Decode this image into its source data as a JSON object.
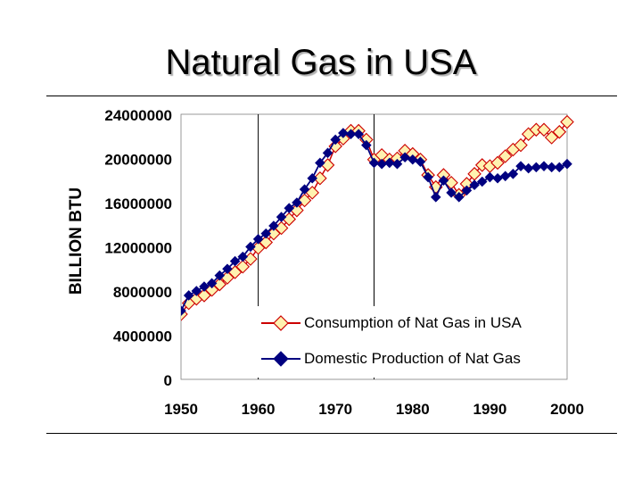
{
  "slide": {
    "title": "Natural Gas in USA"
  },
  "colors": {
    "consumption_fill": "#fff2b0",
    "consumption_line": "#cc0000",
    "production": "#000080",
    "grid": "#000000",
    "plot_bg": "#ffffff"
  },
  "chart_data": {
    "type": "line",
    "title": "",
    "xlabel": "",
    "ylabel": "BILLION BTU",
    "xlim": [
      1950,
      2000
    ],
    "ylim": [
      0,
      24000000
    ],
    "x_ticks": [
      "1950",
      "1960",
      "1970",
      "1980",
      "1990",
      "2000"
    ],
    "y_ticks": [
      "0",
      "4000000",
      "8000000",
      "12000000",
      "16000000",
      "20000000",
      "24000000"
    ],
    "grid": "vertical lines at 1960 and 1975",
    "legend_position": "bottom-right",
    "series": [
      {
        "name": "Consumption of Nat Gas in USA",
        "marker": "diamond",
        "x": [
          1949,
          1950,
          1951,
          1952,
          1953,
          1954,
          1955,
          1956,
          1957,
          1958,
          1959,
          1960,
          1961,
          1962,
          1963,
          1964,
          1965,
          1966,
          1967,
          1968,
          1969,
          1970,
          1971,
          1972,
          1973,
          1974,
          1975,
          1976,
          1977,
          1978,
          1979,
          1980,
          1981,
          1982,
          1983,
          1984,
          1985,
          1986,
          1987,
          1988,
          1989,
          1990,
          1991,
          1992,
          1993,
          1994,
          1995,
          1996,
          1997,
          1998,
          1999,
          2000
        ],
        "y": [
          5200000,
          5900000,
          6900000,
          7300000,
          7600000,
          8100000,
          8600000,
          9200000,
          9700000,
          10200000,
          10900000,
          11900000,
          12400000,
          13200000,
          13700000,
          14500000,
          15300000,
          16200000,
          16900000,
          18200000,
          19400000,
          21100000,
          21800000,
          22500000,
          22500000,
          21700000,
          19900000,
          20300000,
          19900000,
          20000000,
          20700000,
          20400000,
          19900000,
          18500000,
          17400000,
          18500000,
          17800000,
          16700000,
          17700000,
          18600000,
          19400000,
          19300000,
          19600000,
          20200000,
          20800000,
          21200000,
          22200000,
          22600000,
          22600000,
          21900000,
          22400000,
          23300000
        ]
      },
      {
        "name": "Domestic Production of Nat Gas",
        "marker": "diamond",
        "x": [
          1950,
          1951,
          1952,
          1953,
          1954,
          1955,
          1956,
          1957,
          1958,
          1959,
          1960,
          1961,
          1962,
          1963,
          1964,
          1965,
          1966,
          1967,
          1968,
          1969,
          1970,
          1971,
          1972,
          1973,
          1974,
          1975,
          1976,
          1977,
          1978,
          1979,
          1980,
          1981,
          1982,
          1983,
          1984,
          1985,
          1986,
          1987,
          1988,
          1989,
          1990,
          1991,
          1992,
          1993,
          1994,
          1995,
          1996,
          1997,
          1998,
          1999,
          2000
        ],
        "y": [
          6200000,
          7600000,
          8000000,
          8400000,
          8700000,
          9400000,
          10000000,
          10700000,
          11100000,
          12000000,
          12700000,
          13200000,
          13900000,
          14700000,
          15500000,
          16000000,
          17200000,
          18200000,
          19600000,
          20500000,
          21700000,
          22300000,
          22200000,
          22200000,
          21200000,
          19600000,
          19500000,
          19600000,
          19500000,
          20100000,
          19900000,
          19700000,
          18300000,
          16500000,
          18000000,
          16900000,
          16500000,
          17100000,
          17600000,
          17900000,
          18300000,
          18200000,
          18400000,
          18600000,
          19300000,
          19100000,
          19200000,
          19300000,
          19200000,
          19200000,
          19500000
        ]
      }
    ]
  }
}
